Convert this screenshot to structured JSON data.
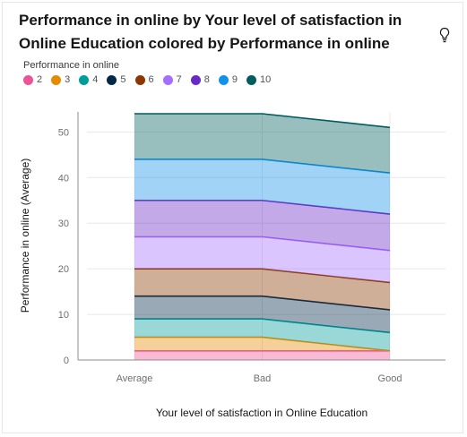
{
  "title": "Performance in online by Your level of satisfaction in Online Education colored by Performance in online",
  "legend_title": "Performance in online",
  "icons": {
    "insight": "lightbulb-icon"
  },
  "chart_data": {
    "type": "area",
    "stacked": true,
    "categories": [
      "Average",
      "Bad",
      "Good"
    ],
    "xlabel": "Your level of satisfaction in Online Education",
    "ylabel": "Performance in online (Average)",
    "ylim": [
      0,
      54
    ],
    "yticks": [
      0,
      10,
      20,
      30,
      40,
      50
    ],
    "grid": true,
    "legend_position": "top-left",
    "series": [
      {
        "name": "2",
        "color": "#ee5396",
        "values": [
          2,
          2,
          2
        ]
      },
      {
        "name": "3",
        "color": "#e68a00",
        "values": [
          3,
          3,
          0
        ]
      },
      {
        "name": "4",
        "color": "#009d9a",
        "values": [
          4,
          4,
          4
        ]
      },
      {
        "name": "5",
        "color": "#012749",
        "values": [
          5,
          5,
          5
        ]
      },
      {
        "name": "6",
        "color": "#8a3800",
        "values": [
          6,
          6,
          6
        ]
      },
      {
        "name": "7",
        "color": "#a56eff",
        "values": [
          7,
          7,
          7
        ]
      },
      {
        "name": "8",
        "color": "#6929c4",
        "values": [
          8,
          8,
          8
        ]
      },
      {
        "name": "9",
        "color": "#1192e8",
        "values": [
          9,
          9,
          9
        ]
      },
      {
        "name": "10",
        "color": "#005d5d",
        "values": [
          10,
          10,
          10
        ]
      }
    ]
  }
}
